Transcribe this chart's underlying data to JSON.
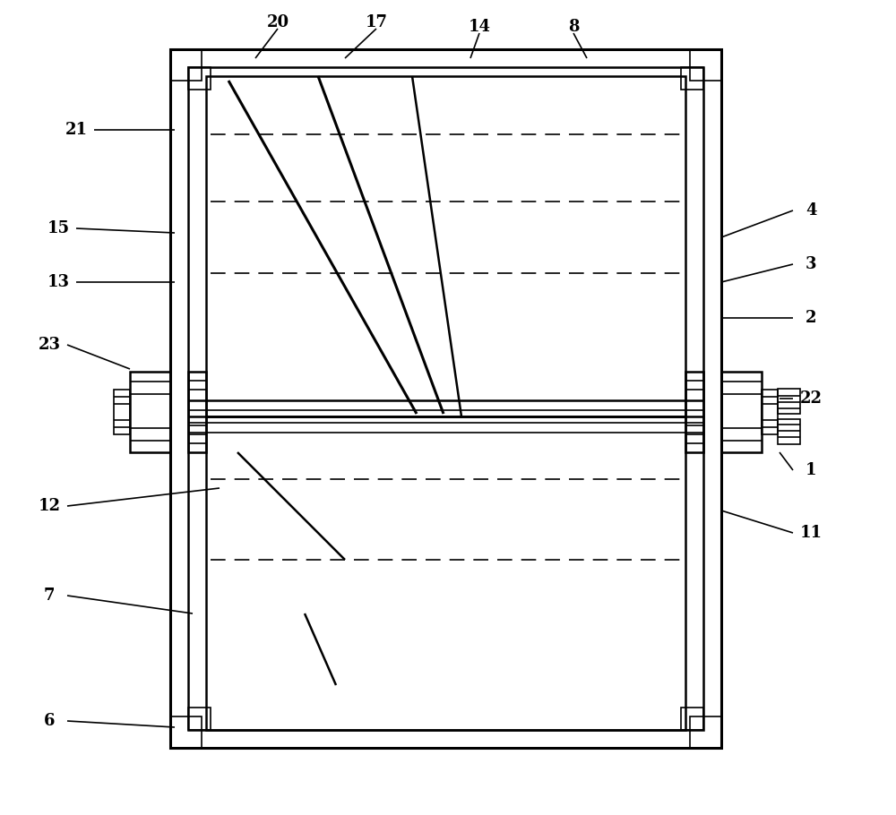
{
  "bg_color": "#ffffff",
  "lc": "#000000",
  "lw": 1.8,
  "lw2": 2.2,
  "lw1": 1.2,
  "fontsize": 13,
  "fig_w": 10.0,
  "fig_h": 9.1
}
